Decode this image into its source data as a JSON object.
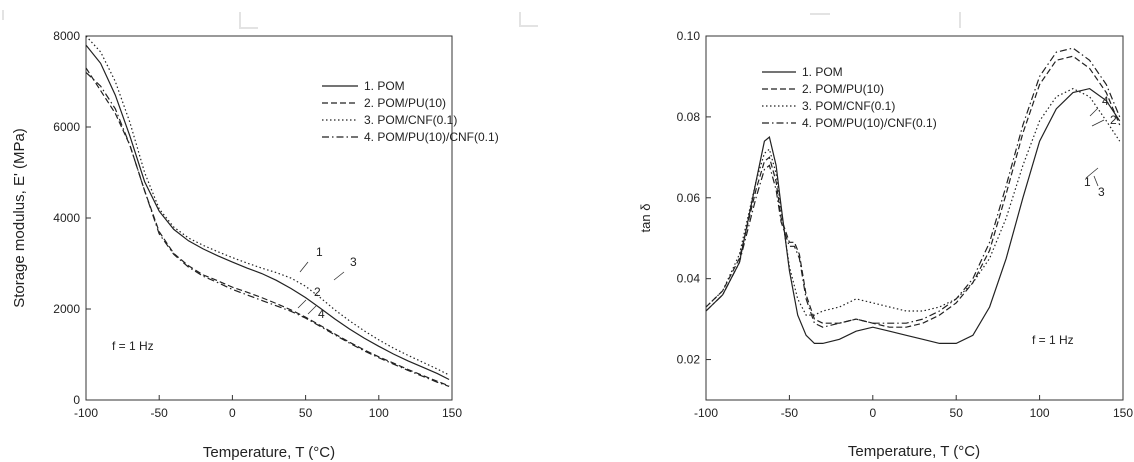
{
  "chart_data": [
    {
      "type": "line",
      "xlabel": "Temperature, T (°C)",
      "ylabel": "Storage modulus, E' (MPa)",
      "xlim": [
        -100,
        150
      ],
      "ylim": [
        0,
        8000
      ],
      "xticks": [
        "-100",
        "-50",
        "0",
        "50",
        "100",
        "150"
      ],
      "yticks": [
        "0",
        "2000",
        "4000",
        "6000",
        "8000"
      ],
      "annotation": "f = 1 Hz",
      "legend_position": "top-right",
      "grid": false,
      "series": [
        {
          "name": "1. POM",
          "label": "1",
          "dash": "solid",
          "x": [
            -100,
            -90,
            -80,
            -70,
            -60,
            -50,
            -40,
            -30,
            -20,
            -10,
            0,
            10,
            20,
            30,
            40,
            50,
            60,
            70,
            80,
            90,
            100,
            110,
            120,
            130,
            140,
            148
          ],
          "y": [
            7800,
            7400,
            6700,
            5800,
            4800,
            4150,
            3750,
            3500,
            3320,
            3170,
            3030,
            2900,
            2780,
            2630,
            2450,
            2250,
            2020,
            1780,
            1560,
            1360,
            1180,
            1010,
            860,
            720,
            580,
            450
          ]
        },
        {
          "name": "2. POM/PU(10)",
          "label": "2",
          "dash": "dashed",
          "x": [
            -100,
            -90,
            -80,
            -70,
            -60,
            -50,
            -40,
            -30,
            -20,
            -10,
            0,
            10,
            20,
            30,
            40,
            50,
            60,
            70,
            80,
            90,
            100,
            110,
            120,
            130,
            140,
            148
          ],
          "y": [
            7300,
            6800,
            6300,
            5600,
            4600,
            3700,
            3220,
            2950,
            2750,
            2620,
            2480,
            2370,
            2250,
            2120,
            1980,
            1820,
            1640,
            1450,
            1270,
            1100,
            950,
            810,
            670,
            540,
            410,
            310
          ]
        },
        {
          "name": "3. POM/CNF(0.1)",
          "label": "3",
          "dash": "dotted",
          "x": [
            -100,
            -90,
            -80,
            -70,
            -60,
            -50,
            -40,
            -30,
            -20,
            -10,
            0,
            10,
            20,
            30,
            40,
            50,
            60,
            70,
            80,
            90,
            100,
            110,
            120,
            130,
            140,
            148
          ],
          "y": [
            8000,
            7650,
            7000,
            6100,
            5000,
            4200,
            3800,
            3560,
            3400,
            3260,
            3130,
            3010,
            2900,
            2800,
            2680,
            2500,
            2250,
            1980,
            1740,
            1520,
            1320,
            1140,
            980,
            830,
            680,
            550
          ]
        },
        {
          "name": "4. POM/PU(10)/CNF(0.1)",
          "label": "4",
          "dash": "dashdot",
          "x": [
            -100,
            -90,
            -80,
            -70,
            -60,
            -50,
            -40,
            -30,
            -20,
            -10,
            0,
            10,
            20,
            30,
            40,
            50,
            60,
            70,
            80,
            90,
            100,
            110,
            120,
            130,
            140,
            148
          ],
          "y": [
            7200,
            6900,
            6400,
            5600,
            4600,
            3650,
            3200,
            2920,
            2720,
            2580,
            2430,
            2310,
            2190,
            2070,
            1950,
            1800,
            1620,
            1430,
            1250,
            1080,
            930,
            790,
            650,
            520,
            390,
            300
          ]
        }
      ]
    },
    {
      "type": "line",
      "xlabel": "Temperature, T (°C)",
      "ylabel": "tan δ",
      "xlim": [
        -100,
        150
      ],
      "ylim": [
        0.01,
        0.1
      ],
      "xticks": [
        "-100",
        "-50",
        "0",
        "50",
        "100",
        "150"
      ],
      "yticks": [
        "0.02",
        "0.04",
        "0.06",
        "0.08",
        "0.10"
      ],
      "annotation": "f = 1 Hz",
      "legend_position": "top-left",
      "grid": false,
      "series": [
        {
          "name": "1. POM",
          "label": "1",
          "dash": "solid",
          "x": [
            -100,
            -90,
            -80,
            -70,
            -65,
            -62,
            -58,
            -55,
            -50,
            -45,
            -40,
            -35,
            -30,
            -20,
            -10,
            0,
            10,
            20,
            30,
            40,
            50,
            60,
            70,
            80,
            90,
            100,
            110,
            120,
            130,
            140,
            148
          ],
          "y": [
            0.032,
            0.036,
            0.044,
            0.064,
            0.074,
            0.075,
            0.068,
            0.058,
            0.042,
            0.031,
            0.026,
            0.024,
            0.024,
            0.025,
            0.027,
            0.028,
            0.027,
            0.026,
            0.025,
            0.024,
            0.024,
            0.026,
            0.033,
            0.045,
            0.06,
            0.074,
            0.082,
            0.086,
            0.087,
            0.084,
            0.079
          ]
        },
        {
          "name": "2. POM/PU(10)",
          "label": "2",
          "dash": "dashed",
          "x": [
            -100,
            -90,
            -80,
            -70,
            -65,
            -62,
            -58,
            -55,
            -50,
            -47,
            -44,
            -40,
            -35,
            -30,
            -20,
            -10,
            0,
            10,
            20,
            30,
            40,
            50,
            60,
            70,
            80,
            90,
            100,
            110,
            120,
            130,
            140,
            148
          ],
          "y": [
            0.033,
            0.037,
            0.045,
            0.062,
            0.069,
            0.07,
            0.064,
            0.055,
            0.049,
            0.049,
            0.046,
            0.036,
            0.03,
            0.029,
            0.029,
            0.03,
            0.029,
            0.028,
            0.028,
            0.029,
            0.031,
            0.034,
            0.039,
            0.047,
            0.061,
            0.076,
            0.088,
            0.094,
            0.095,
            0.092,
            0.086,
            0.078
          ]
        },
        {
          "name": "3. POM/CNF(0.1)",
          "label": "3",
          "dash": "dotted",
          "x": [
            -100,
            -90,
            -80,
            -70,
            -65,
            -62,
            -58,
            -55,
            -50,
            -45,
            -40,
            -35,
            -30,
            -20,
            -10,
            0,
            10,
            20,
            30,
            40,
            50,
            60,
            70,
            80,
            90,
            100,
            110,
            120,
            130,
            140,
            148
          ],
          "y": [
            0.033,
            0.037,
            0.046,
            0.064,
            0.071,
            0.072,
            0.066,
            0.057,
            0.043,
            0.035,
            0.031,
            0.031,
            0.032,
            0.033,
            0.035,
            0.034,
            0.033,
            0.032,
            0.032,
            0.033,
            0.035,
            0.039,
            0.045,
            0.055,
            0.068,
            0.079,
            0.085,
            0.087,
            0.085,
            0.079,
            0.074
          ]
        },
        {
          "name": "4. POM/PU(10)/CNF(0.1)",
          "label": "4",
          "dash": "dashdot",
          "x": [
            -100,
            -90,
            -80,
            -70,
            -65,
            -62,
            -58,
            -55,
            -50,
            -47,
            -44,
            -40,
            -35,
            -30,
            -20,
            -10,
            0,
            10,
            20,
            30,
            40,
            50,
            60,
            70,
            80,
            90,
            100,
            110,
            120,
            130,
            140,
            148
          ],
          "y": [
            0.032,
            0.036,
            0.044,
            0.06,
            0.067,
            0.068,
            0.062,
            0.054,
            0.048,
            0.048,
            0.045,
            0.035,
            0.029,
            0.028,
            0.029,
            0.03,
            0.029,
            0.029,
            0.029,
            0.03,
            0.032,
            0.035,
            0.04,
            0.049,
            0.063,
            0.078,
            0.09,
            0.096,
            0.097,
            0.094,
            0.088,
            0.08
          ]
        }
      ]
    }
  ]
}
